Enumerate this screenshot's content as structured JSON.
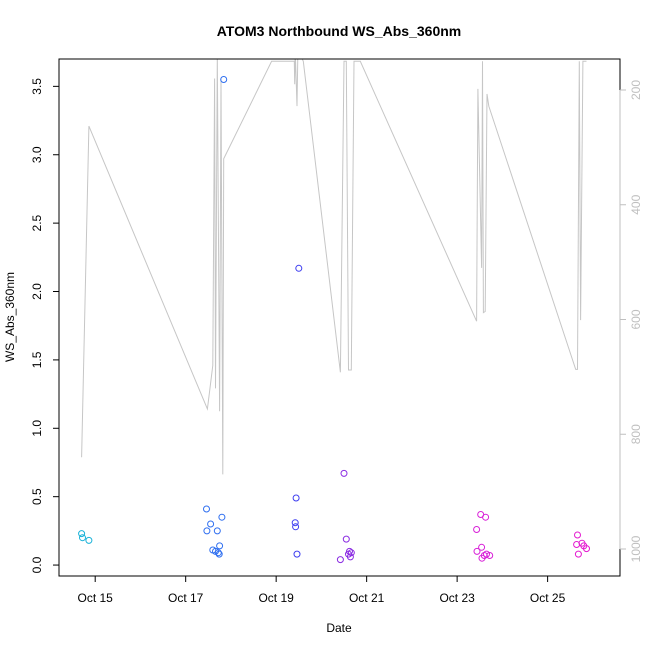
{
  "chart_data": {
    "type": "scatter",
    "title": "ATOM3 Northbound WS_Abs_360nm",
    "xlabel": "Date",
    "ylabel": "WS_Abs_360nm",
    "x_unit": "day of October",
    "xlim": [
      14.2,
      26.6
    ],
    "ylim": [
      -0.08,
      3.7
    ],
    "x_ticks": [
      {
        "value": 15,
        "label": "Oct 15"
      },
      {
        "value": 17,
        "label": "Oct 17"
      },
      {
        "value": 19,
        "label": "Oct 19"
      },
      {
        "value": 21,
        "label": "Oct 21"
      },
      {
        "value": 23,
        "label": "Oct 23"
      },
      {
        "value": 25,
        "label": "Oct 25"
      }
    ],
    "y_ticks": [
      0.0,
      0.5,
      1.0,
      1.5,
      2.0,
      2.5,
      3.0,
      3.5
    ],
    "y_tick_labels": [
      "0.0",
      "0.5",
      "1.0",
      "1.5",
      "2.0",
      "2.5",
      "3.0",
      "3.5"
    ],
    "y2_ticks": [
      200,
      400,
      600,
      800,
      1000
    ],
    "y2_tick_labels": [
      "200",
      "400",
      "600",
      "800",
      "1000"
    ],
    "y2_reversed": true,
    "y2_color": "#bfbfbf",
    "grid": false,
    "series": [
      {
        "marker": "open-circle",
        "points": [
          {
            "x": 14.7,
            "y": 0.23,
            "color": "#19b2d8"
          },
          {
            "x": 14.72,
            "y": 0.2,
            "color": "#19b2d8"
          },
          {
            "x": 14.86,
            "y": 0.18,
            "color": "#19b2d8"
          },
          {
            "x": 17.46,
            "y": 0.41,
            "color": "#2f6ff0"
          },
          {
            "x": 17.47,
            "y": 0.25,
            "color": "#2f6ff0"
          },
          {
            "x": 17.55,
            "y": 0.3,
            "color": "#2f6ff0"
          },
          {
            "x": 17.6,
            "y": 0.11,
            "color": "#2f6ff0"
          },
          {
            "x": 17.66,
            "y": 0.1,
            "color": "#2f6ff0"
          },
          {
            "x": 17.7,
            "y": 0.25,
            "color": "#2f6ff0"
          },
          {
            "x": 17.72,
            "y": 0.09,
            "color": "#2f6ff0"
          },
          {
            "x": 17.74,
            "y": 0.08,
            "color": "#2f6ff0"
          },
          {
            "x": 17.75,
            "y": 0.14,
            "color": "#2f6ff0"
          },
          {
            "x": 17.8,
            "y": 0.35,
            "color": "#2f6ff0"
          },
          {
            "x": 17.84,
            "y": 3.55,
            "color": "#2f6ff0"
          },
          {
            "x": 19.42,
            "y": 0.31,
            "color": "#3d3df0"
          },
          {
            "x": 19.43,
            "y": 0.28,
            "color": "#3d3df0"
          },
          {
            "x": 19.44,
            "y": 0.49,
            "color": "#3d3df0"
          },
          {
            "x": 19.46,
            "y": 0.08,
            "color": "#3d3df0"
          },
          {
            "x": 19.5,
            "y": 2.17,
            "color": "#3d3df0"
          },
          {
            "x": 20.42,
            "y": 0.04,
            "color": "#8a2be2"
          },
          {
            "x": 20.5,
            "y": 0.67,
            "color": "#8a2be2"
          },
          {
            "x": 20.55,
            "y": 0.19,
            "color": "#8a2be2"
          },
          {
            "x": 20.6,
            "y": 0.08,
            "color": "#8a2be2"
          },
          {
            "x": 20.62,
            "y": 0.1,
            "color": "#8a2be2"
          },
          {
            "x": 20.64,
            "y": 0.06,
            "color": "#8a2be2"
          },
          {
            "x": 20.66,
            "y": 0.09,
            "color": "#8a2be2"
          },
          {
            "x": 23.43,
            "y": 0.26,
            "color": "#d820d8"
          },
          {
            "x": 23.44,
            "y": 0.1,
            "color": "#d820d8"
          },
          {
            "x": 23.52,
            "y": 0.37,
            "color": "#d820d8"
          },
          {
            "x": 23.54,
            "y": 0.13,
            "color": "#d820d8"
          },
          {
            "x": 23.55,
            "y": 0.05,
            "color": "#d820d8"
          },
          {
            "x": 23.6,
            "y": 0.07,
            "color": "#d820d8"
          },
          {
            "x": 23.63,
            "y": 0.35,
            "color": "#d820d8"
          },
          {
            "x": 23.65,
            "y": 0.08,
            "color": "#d820d8"
          },
          {
            "x": 23.72,
            "y": 0.07,
            "color": "#d820d8"
          },
          {
            "x": 25.64,
            "y": 0.15,
            "color": "#e41ad0"
          },
          {
            "x": 25.66,
            "y": 0.22,
            "color": "#e41ad0"
          },
          {
            "x": 25.68,
            "y": 0.08,
            "color": "#e41ad0"
          },
          {
            "x": 25.76,
            "y": 0.16,
            "color": "#e41ad0"
          },
          {
            "x": 25.8,
            "y": 0.14,
            "color": "#e41ad0"
          },
          {
            "x": 25.86,
            "y": 0.12,
            "color": "#e41ad0"
          }
        ]
      },
      {
        "axis": "right",
        "style": "line",
        "color": "#c6c6c6",
        "points": [
          {
            "x": 14.7,
            "y2": 840
          },
          {
            "x": 14.86,
            "y2": 263
          },
          {
            "x": 17.48,
            "y2": 756
          },
          {
            "x": 17.6,
            "y2": 680
          },
          {
            "x": 17.64,
            "y2": 180
          },
          {
            "x": 17.66,
            "y2": 720
          },
          {
            "x": 17.7,
            "y2": 140
          },
          {
            "x": 17.75,
            "y2": 760
          },
          {
            "x": 17.78,
            "y2": 180
          },
          {
            "x": 17.82,
            "y2": 870
          },
          {
            "x": 17.84,
            "y2": 320
          },
          {
            "x": 18.9,
            "y2": 150
          },
          {
            "x": 19.4,
            "y2": 150
          },
          {
            "x": 19.41,
            "y2": 190
          },
          {
            "x": 19.42,
            "y2": 130
          },
          {
            "x": 19.46,
            "y2": 228
          },
          {
            "x": 19.48,
            "y2": 130
          },
          {
            "x": 19.6,
            "y2": 150
          },
          {
            "x": 20.42,
            "y2": 692
          },
          {
            "x": 20.5,
            "y2": 150
          },
          {
            "x": 20.55,
            "y2": 150
          },
          {
            "x": 20.6,
            "y2": 688
          },
          {
            "x": 20.66,
            "y2": 688
          },
          {
            "x": 20.72,
            "y2": 150
          },
          {
            "x": 20.86,
            "y2": 150
          },
          {
            "x": 23.43,
            "y2": 603
          },
          {
            "x": 23.46,
            "y2": 198
          },
          {
            "x": 23.54,
            "y2": 510
          },
          {
            "x": 23.56,
            "y2": 150
          },
          {
            "x": 23.58,
            "y2": 588
          },
          {
            "x": 23.62,
            "y2": 586
          },
          {
            "x": 23.66,
            "y2": 207
          },
          {
            "x": 23.7,
            "y2": 228
          },
          {
            "x": 25.62,
            "y2": 687
          },
          {
            "x": 25.66,
            "y2": 687
          },
          {
            "x": 25.7,
            "y2": 150
          },
          {
            "x": 25.73,
            "y2": 601
          },
          {
            "x": 25.78,
            "y2": 150
          },
          {
            "x": 25.86,
            "y2": 150
          }
        ]
      }
    ]
  }
}
